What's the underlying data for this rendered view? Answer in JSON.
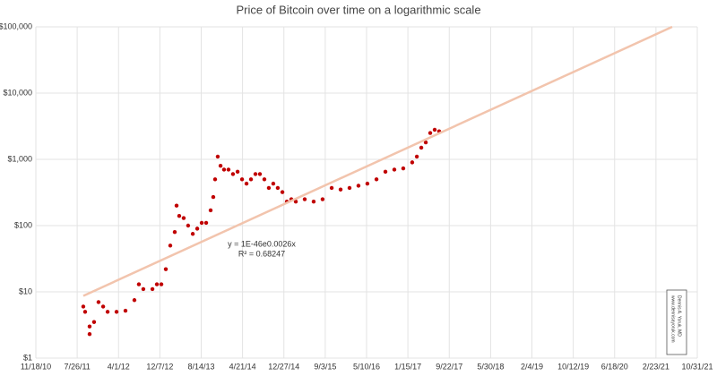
{
  "chart_data": {
    "type": "scatter",
    "title": "Price of Bitcoin over time on a logarithmic scale",
    "xlim": [
      40500,
      44500
    ],
    "xticks": [
      {
        "value": 40500,
        "label": "11/18/10"
      },
      {
        "value": 40750,
        "label": "7/26/11"
      },
      {
        "value": 41000,
        "label": "4/1/12"
      },
      {
        "value": 41250,
        "label": "12/7/12"
      },
      {
        "value": 41500,
        "label": "8/14/13"
      },
      {
        "value": 41750,
        "label": "4/21/14"
      },
      {
        "value": 42000,
        "label": "12/27/14"
      },
      {
        "value": 42250,
        "label": "9/3/15"
      },
      {
        "value": 42500,
        "label": "5/10/16"
      },
      {
        "value": 42750,
        "label": "1/15/17"
      },
      {
        "value": 43000,
        "label": "9/22/17"
      },
      {
        "value": 43250,
        "label": "5/30/18"
      },
      {
        "value": 43500,
        "label": "2/4/19"
      },
      {
        "value": 43750,
        "label": "10/12/19"
      },
      {
        "value": 44000,
        "label": "6/18/20"
      },
      {
        "value": 44250,
        "label": "2/23/21"
      },
      {
        "value": 44500,
        "label": "10/31/21"
      }
    ],
    "ylim": [
      1,
      100000
    ],
    "log_y": true,
    "grid": true,
    "yticks": [
      {
        "value": 1,
        "label": "$1"
      },
      {
        "value": 10,
        "label": "$10"
      },
      {
        "value": 100,
        "label": "$100"
      },
      {
        "value": 1000,
        "label": "$1,000"
      },
      {
        "value": 10000,
        "label": "$10,000"
      },
      {
        "value": 100000,
        "label": "$100,000"
      }
    ],
    "series": [
      {
        "kind": "markers",
        "color": "#c00000",
        "x": [
          40787,
          40798,
          40825,
          40825,
          40852,
          40879,
          40907,
          40934,
          40988,
          41042,
          41096,
          41123,
          41150,
          41205,
          41232,
          41259,
          41286,
          41313,
          41340,
          41351,
          41367,
          41394,
          41421,
          41449,
          41476,
          41503,
          41530,
          41557,
          41573,
          41584,
          41600,
          41617,
          41638,
          41665,
          41692,
          41720,
          41747,
          41774,
          41801,
          41828,
          41855,
          41882,
          41909,
          41936,
          41963,
          41991,
          42018,
          42045,
          42072,
          42126,
          42180,
          42234,
          42289,
          42343,
          42397,
          42451,
          42505,
          42560,
          42614,
          42668,
          42722,
          42776,
          42804,
          42831,
          42858,
          42885,
          42912,
          42939
        ],
        "values": [
          6,
          5,
          3,
          2.3,
          3.5,
          7,
          6,
          5,
          5,
          5.2,
          7.5,
          13,
          11,
          11,
          13,
          13,
          22,
          50,
          80,
          200,
          140,
          130,
          100,
          75,
          90,
          110,
          110,
          170,
          270,
          500,
          1100,
          800,
          700,
          700,
          600,
          650,
          500,
          430,
          500,
          600,
          600,
          500,
          370,
          430,
          370,
          320,
          230,
          250,
          230,
          250,
          230,
          250,
          370,
          350,
          370,
          400,
          430,
          500,
          650,
          700,
          730,
          900,
          1100,
          1500,
          1800,
          2500,
          2800,
          2650
        ]
      },
      {
        "kind": "line",
        "color": "#f2c4ad",
        "x": [
          40787,
          44348
        ],
        "values": [
          8.7,
          100000
        ]
      }
    ],
    "annotations": [
      "y = 1E-46e0.0026x",
      "R² = 0.68247"
    ],
    "credit": [
      "Dennis A. Yoruk, MD",
      "www.dennisayoruk.com"
    ]
  }
}
